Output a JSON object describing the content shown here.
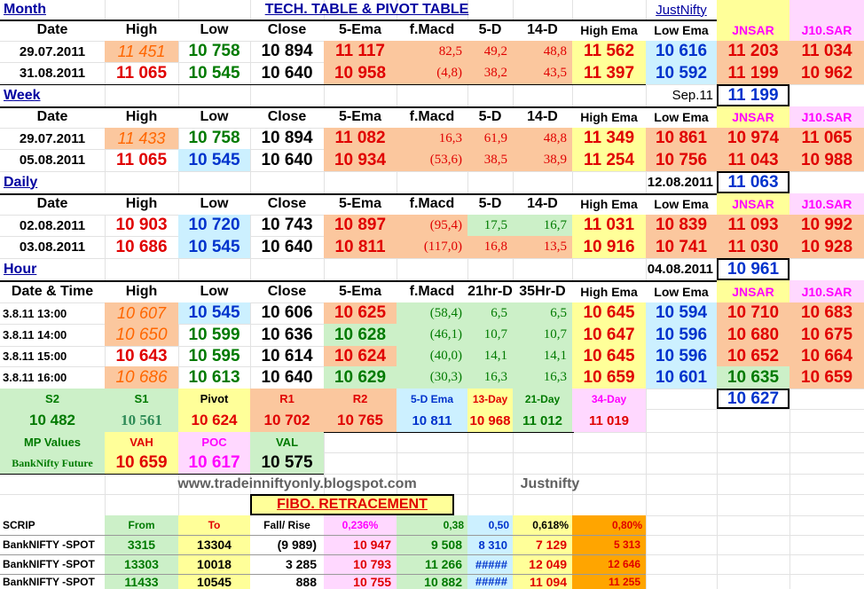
{
  "title": "TECH. TABLE  &  PIVOT TABLE",
  "brand": "JustNifty",
  "colors": {
    "orange": "#fbc79e",
    "green": "#ccf0c8",
    "yellow": "#ffff99",
    "lightblue": "#ccf0ff",
    "pinkhdr": "#ffd8ff",
    "red_text": "#e00000",
    "green_text": "#007a00",
    "blue_text": "#0033cc",
    "magenta_text": "#ff00ff",
    "navy_text": "#0000a0"
  },
  "headers": {
    "standard": [
      "Date",
      "High",
      "Low",
      "Close",
      "5-Ema",
      "f.Macd",
      "5-D",
      "14-D",
      "High Ema",
      "Low Ema",
      "JNSAR",
      "J10.SAR"
    ],
    "hour": [
      "Date & Time",
      "High",
      "Low",
      "Close",
      "5-Ema",
      "f.Macd",
      "21hr-D",
      "35Hr-D",
      "High Ema",
      "Low Ema",
      "JNSAR",
      "J10.SAR"
    ]
  },
  "month": {
    "label": "Month",
    "rows": [
      [
        "29.07.2011",
        "11 451",
        "10 758",
        "10 894",
        "11 117",
        "82,5",
        "49,2",
        "48,8",
        "11 562",
        "10 616",
        "11 203",
        "11 034"
      ],
      [
        "31.08.2011",
        "11 065",
        "10 545",
        "10 640",
        "10 958",
        "(4,8)",
        "38,2",
        "43,5",
        "11 397",
        "10 592",
        "11 199",
        "10 962"
      ]
    ],
    "sar_date": "Sep.11",
    "sar_value": "11 199"
  },
  "week": {
    "label": "Week",
    "rows": [
      [
        "29.07.2011",
        "11 433",
        "10 758",
        "10 894",
        "11 082",
        "16,3",
        "61,9",
        "48,8",
        "11 349",
        "10 861",
        "10 974",
        "11 065"
      ],
      [
        "05.08.2011",
        "11 065",
        "10 545",
        "10 640",
        "10 934",
        "(53,6)",
        "38,5",
        "38,9",
        "11 254",
        "10 756",
        "11 043",
        "10 988"
      ]
    ],
    "sar_date": "12.08.2011",
    "sar_value": "11 063"
  },
  "daily": {
    "label": "Daily",
    "rows": [
      [
        "02.08.2011",
        "10 903",
        "10 720",
        "10 743",
        "10 897",
        "(95,4)",
        "17,5",
        "16,7",
        "11 031",
        "10 839",
        "11 093",
        "10 992"
      ],
      [
        "03.08.2011",
        "10 686",
        "10 545",
        "10 640",
        "10 811",
        "(117,0)",
        "16,8",
        "13,5",
        "10 916",
        "10 741",
        "11 030",
        "10 928"
      ]
    ],
    "sar_date": "04.08.2011",
    "sar_value": "10 961"
  },
  "hour": {
    "label": "Hour",
    "rows": [
      [
        "3.8.11 13:00",
        "10 607",
        "10 545",
        "10 606",
        "10 625",
        "(58,4)",
        "6,5",
        "6,5",
        "10 645",
        "10 594",
        "10 710",
        "10 683"
      ],
      [
        "3.8.11 14:00",
        "10 650",
        "10 599",
        "10 636",
        "10 628",
        "(46,1)",
        "10,7",
        "10,7",
        "10 647",
        "10 596",
        "10 680",
        "10 675"
      ],
      [
        "3.8.11 15:00",
        "10 643",
        "10 595",
        "10 614",
        "10 624",
        "(40,0)",
        "14,1",
        "14,1",
        "10 645",
        "10 596",
        "10 652",
        "10 664"
      ],
      [
        "3.8.11 16:00",
        "10 686",
        "10 613",
        "10 640",
        "10 629",
        "(30,3)",
        "16,3",
        "16,3",
        "10 659",
        "10 601",
        "10 635",
        "10 659"
      ]
    ],
    "sar_value": "10 627"
  },
  "pivot": {
    "labels": [
      "S2",
      "S1",
      "Pivot",
      "R1",
      "R2",
      "5-D Ema",
      "13-Day",
      "21-Day",
      "34-Day"
    ],
    "values": [
      "10 482",
      "10 561",
      "10 624",
      "10 702",
      "10 765",
      "10 811",
      "10 968",
      "11 012",
      "11 019"
    ]
  },
  "mp": {
    "label": "MP Values",
    "future_label": "BankNifty Future",
    "headers": [
      "VAH",
      "POC",
      "VAL"
    ],
    "values": [
      "10 659",
      "10 617",
      "10 575"
    ]
  },
  "website": "www.tradeinniftyonly.blogspot.com",
  "website_brand": "Justnifty",
  "fibo": {
    "title": "FIBO. RETRACEMENT",
    "headers": [
      "SCRIP",
      "From",
      "To",
      "Fall/ Rise",
      "0,236%",
      "0,38",
      "0,50",
      "0,618%",
      "0,80%"
    ],
    "rows": [
      [
        "BankNIFTY -SPOT",
        "3315",
        "13304",
        "(9 989)",
        "10 947",
        "9 508",
        "8 310",
        "7 129",
        "5 313"
      ],
      [
        "BankNIFTY -SPOT",
        "13303",
        "10018",
        "3 285",
        "10 793",
        "11 266",
        "#####",
        "12 049",
        "12 646"
      ],
      [
        "BankNIFTY -SPOT",
        "11433",
        "10545",
        "888",
        "10 755",
        "10 882",
        "#####",
        "11 094",
        "11 255"
      ]
    ]
  }
}
